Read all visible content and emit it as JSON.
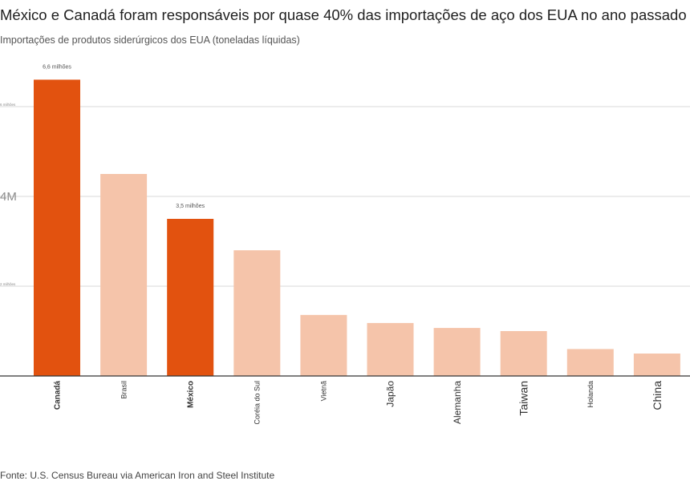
{
  "title": "México e Canadá foram responsáveis por quase 40% das importações de aço dos EUA no ano passado",
  "subtitle": "Importações de produtos siderúrgicos dos EUA (toneladas líquidas)",
  "source": "Fonte: U.S. Census Bureau via American Iron and Steel Institute",
  "colors": {
    "highlight": "#e2520f",
    "muted": "#f5c4aa",
    "grid": "#d9d9d9",
    "axis": "#333333"
  },
  "chart_data": {
    "type": "bar",
    "title": "México e Canadá foram responsáveis por quase 40% das importações de aço dos EUA no ano passado",
    "subtitle": "Importações de produtos siderúrgicos dos EUA (toneladas líquidas)",
    "categories": [
      "Canadá",
      "Brasil",
      "México",
      "Coréia do Sul",
      "Vietnã",
      "Japão",
      "Alemanha",
      "Taiwan",
      "Holanda",
      "China"
    ],
    "values": [
      6.6,
      4.5,
      3.5,
      2.8,
      1.36,
      1.18,
      1.07,
      1.0,
      0.6,
      0.5
    ],
    "highlighted": [
      "Canadá",
      "México"
    ],
    "value_unit": "milhões de toneladas líquidas",
    "data_labels": [
      {
        "category": "Canadá",
        "text": "6,6 milhões"
      },
      {
        "category": "México",
        "text": "3,5 milhões"
      }
    ],
    "y_ticks": [
      {
        "value": 2,
        "label": "2 milhões"
      },
      {
        "value": 4,
        "label": "4M"
      },
      {
        "value": 6,
        "label": "6 milhões"
      }
    ],
    "ylim": [
      0,
      7
    ],
    "grid": true,
    "legend": "none"
  }
}
